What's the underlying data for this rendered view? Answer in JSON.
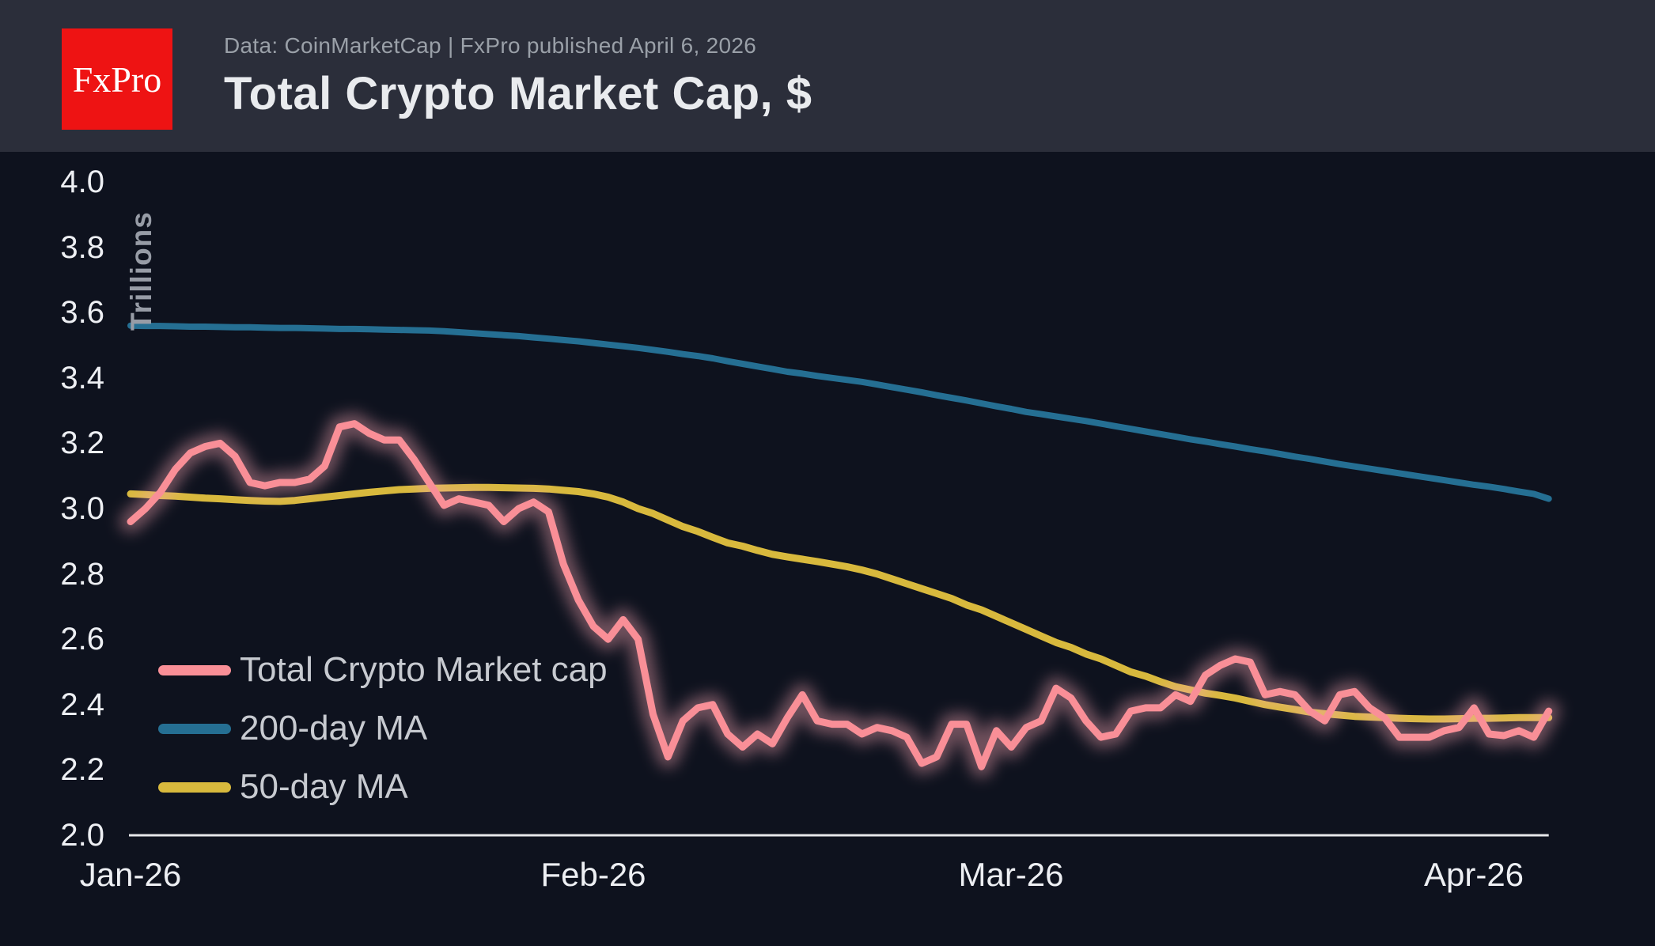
{
  "header": {
    "logo_text": "FxPro",
    "source_line": "Data: CoinMarketCap | FxPro published April 6, 2026",
    "title": "Total Crypto Market Cap, $"
  },
  "colors": {
    "header_bg": "#2b2e3a",
    "page_bg": "#0e121e",
    "logo_red": "#ee1313",
    "title_text": "#e9ebee",
    "subtitle_text": "#9aa0a8",
    "tick_text": "#edeff3",
    "axis_line": "#e6e7ea",
    "ylabel_text": "#979ca6",
    "legend_text": "#c7cad0"
  },
  "chart_data": {
    "type": "line",
    "title": "Total Crypto Market Cap, $",
    "ylabel": "Trillions",
    "xlabel": "",
    "ylim": [
      2.0,
      4.0
    ],
    "y_tick_labels": [
      "4.0",
      "3.8",
      "3.6",
      "3.4",
      "3.2",
      "3.0",
      "2.8",
      "2.6",
      "2.4",
      "2.2",
      "2.0"
    ],
    "x_ticks": [
      {
        "label": "Jan-26",
        "day": 0
      },
      {
        "label": "Feb-26",
        "day": 31
      },
      {
        "label": "Mar-26",
        "day": 59
      },
      {
        "label": "Apr-26",
        "day": 90
      }
    ],
    "days_total": 95,
    "grid": false,
    "legend_position": "middle-left",
    "series": [
      {
        "name": "Total Crypto Market cap",
        "color": "#f98f97",
        "glow": true,
        "glow_color": "#f7a6b2",
        "width": 9,
        "z": 3,
        "values": [
          2.96,
          3.0,
          3.05,
          3.12,
          3.17,
          3.19,
          3.2,
          3.16,
          3.08,
          3.07,
          3.08,
          3.08,
          3.09,
          3.13,
          3.25,
          3.26,
          3.23,
          3.21,
          3.21,
          3.15,
          3.08,
          3.01,
          3.03,
          3.02,
          3.01,
          2.96,
          3.0,
          3.02,
          2.99,
          2.83,
          2.72,
          2.64,
          2.6,
          2.66,
          2.6,
          2.37,
          2.24,
          2.35,
          2.39,
          2.4,
          2.31,
          2.27,
          2.31,
          2.28,
          2.36,
          2.43,
          2.35,
          2.34,
          2.34,
          2.31,
          2.33,
          2.32,
          2.3,
          2.22,
          2.24,
          2.34,
          2.34,
          2.21,
          2.32,
          2.27,
          2.33,
          2.35,
          2.45,
          2.42,
          2.35,
          2.3,
          2.31,
          2.38,
          2.39,
          2.39,
          2.43,
          2.41,
          2.49,
          2.52,
          2.54,
          2.53,
          2.43,
          2.44,
          2.43,
          2.38,
          2.35,
          2.43,
          2.44,
          2.39,
          2.36,
          2.3,
          2.3,
          2.3,
          2.32,
          2.33,
          2.39,
          2.31,
          2.305,
          2.32,
          2.3,
          2.38
        ]
      },
      {
        "name": "200-day MA",
        "color": "#256f93",
        "glow": false,
        "glow_color": "",
        "width": 8,
        "z": 1,
        "values": [
          3.56,
          3.559,
          3.559,
          3.558,
          3.557,
          3.557,
          3.556,
          3.555,
          3.555,
          3.554,
          3.553,
          3.553,
          3.552,
          3.551,
          3.55,
          3.55,
          3.549,
          3.548,
          3.547,
          3.546,
          3.545,
          3.543,
          3.54,
          3.537,
          3.534,
          3.531,
          3.528,
          3.524,
          3.52,
          3.516,
          3.512,
          3.507,
          3.502,
          3.497,
          3.492,
          3.486,
          3.48,
          3.473,
          3.467,
          3.46,
          3.451,
          3.443,
          3.435,
          3.427,
          3.419,
          3.413,
          3.406,
          3.4,
          3.394,
          3.388,
          3.38,
          3.372,
          3.364,
          3.356,
          3.347,
          3.339,
          3.331,
          3.322,
          3.313,
          3.305,
          3.296,
          3.289,
          3.282,
          3.275,
          3.268,
          3.26,
          3.252,
          3.244,
          3.236,
          3.228,
          3.22,
          3.212,
          3.205,
          3.197,
          3.19,
          3.182,
          3.175,
          3.167,
          3.159,
          3.152,
          3.144,
          3.136,
          3.129,
          3.122,
          3.115,
          3.108,
          3.101,
          3.094,
          3.087,
          3.08,
          3.073,
          3.067,
          3.06,
          3.052,
          3.045,
          3.03
        ]
      },
      {
        "name": "50-day MA",
        "color": "#d8b93d",
        "glow": false,
        "glow_color": "",
        "width": 9,
        "z": 2,
        "values": [
          3.045,
          3.043,
          3.04,
          3.038,
          3.035,
          3.032,
          3.03,
          3.027,
          3.025,
          3.023,
          3.022,
          3.025,
          3.03,
          3.035,
          3.04,
          3.045,
          3.05,
          3.054,
          3.058,
          3.06,
          3.062,
          3.063,
          3.064,
          3.065,
          3.065,
          3.064,
          3.063,
          3.062,
          3.06,
          3.056,
          3.052,
          3.045,
          3.035,
          3.02,
          3.0,
          2.985,
          2.965,
          2.945,
          2.93,
          2.912,
          2.895,
          2.885,
          2.872,
          2.86,
          2.852,
          2.845,
          2.838,
          2.83,
          2.822,
          2.812,
          2.8,
          2.785,
          2.77,
          2.755,
          2.74,
          2.725,
          2.705,
          2.69,
          2.67,
          2.65,
          2.63,
          2.61,
          2.59,
          2.575,
          2.555,
          2.54,
          2.52,
          2.5,
          2.487,
          2.47,
          2.455,
          2.445,
          2.435,
          2.428,
          2.42,
          2.41,
          2.4,
          2.392,
          2.385,
          2.377,
          2.372,
          2.368,
          2.364,
          2.362,
          2.36,
          2.358,
          2.357,
          2.356,
          2.356,
          2.357,
          2.358,
          2.358,
          2.359,
          2.36,
          2.36,
          2.36
        ]
      }
    ]
  }
}
